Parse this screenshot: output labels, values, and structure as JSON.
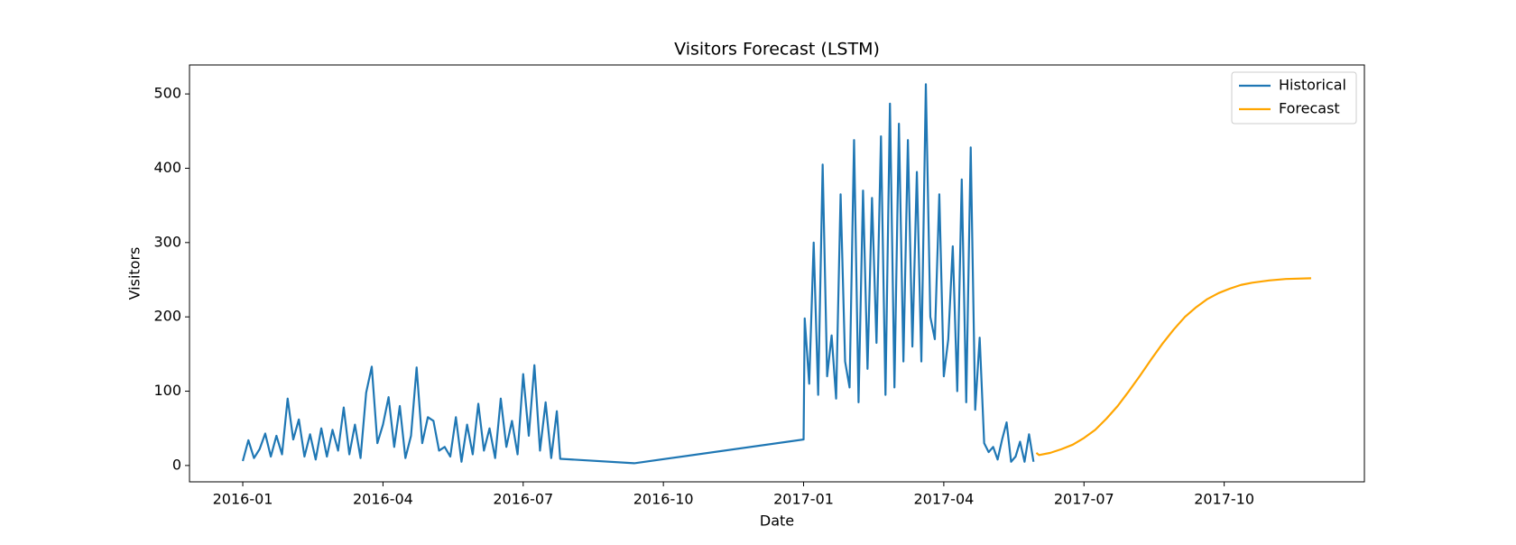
{
  "chart_data": {
    "type": "line",
    "title": "Visitors Forecast (LSTM)",
    "x_label": "Date",
    "y_label": "Visitors",
    "xlim": [
      2015.905,
      2018.0
    ],
    "ylim": [
      -22,
      539
    ],
    "xticks": [
      {
        "value": 2016.0,
        "label": "2016-01"
      },
      {
        "value": 2016.25,
        "label": "2016-04"
      },
      {
        "value": 2016.5,
        "label": "2016-07"
      },
      {
        "value": 2016.75,
        "label": "2016-10"
      },
      {
        "value": 2017.0,
        "label": "2017-01"
      },
      {
        "value": 2017.25,
        "label": "2017-04"
      },
      {
        "value": 2017.5,
        "label": "2017-07"
      },
      {
        "value": 2017.75,
        "label": "2017-10"
      }
    ],
    "yticks": [
      0,
      100,
      200,
      300,
      400,
      500
    ],
    "legend": "upper right",
    "grid": false,
    "series": [
      {
        "name": "Historical",
        "color": "#1f77b4",
        "x": [
          2016.0,
          2016.01,
          2016.02,
          2016.03,
          2016.04,
          2016.05,
          2016.06,
          2016.07,
          2016.08,
          2016.09,
          2016.1,
          2016.11,
          2016.12,
          2016.13,
          2016.14,
          2016.15,
          2016.16,
          2016.17,
          2016.18,
          2016.19,
          2016.2,
          2016.21,
          2016.22,
          2016.23,
          2016.24,
          2016.25,
          2016.26,
          2016.27,
          2016.28,
          2016.29,
          2016.3,
          2016.31,
          2016.32,
          2016.33,
          2016.34,
          2016.35,
          2016.36,
          2016.37,
          2016.38,
          2016.39,
          2016.4,
          2016.41,
          2016.42,
          2016.43,
          2016.44,
          2016.45,
          2016.46,
          2016.47,
          2016.48,
          2016.49,
          2016.5,
          2016.51,
          2016.52,
          2016.53,
          2016.54,
          2016.55,
          2016.56,
          2016.566,
          2016.698,
          2017.0,
          2017.002,
          2017.01,
          2017.018,
          2017.026,
          2017.034,
          2017.042,
          2017.05,
          2017.058,
          2017.066,
          2017.074,
          2017.082,
          2017.09,
          2017.098,
          2017.106,
          2017.114,
          2017.122,
          2017.13,
          2017.138,
          2017.146,
          2017.154,
          2017.162,
          2017.17,
          2017.178,
          2017.186,
          2017.194,
          2017.202,
          2017.21,
          2017.218,
          2017.226,
          2017.234,
          2017.242,
          2017.25,
          2017.258,
          2017.266,
          2017.274,
          2017.282,
          2017.29,
          2017.298,
          2017.306,
          2017.314,
          2017.322,
          2017.33,
          2017.338,
          2017.346,
          2017.354,
          2017.362,
          2017.37,
          2017.378,
          2017.386,
          2017.394,
          2017.402,
          2017.41
        ],
        "values": [
          6,
          34,
          10,
          22,
          43,
          12,
          40,
          15,
          90,
          35,
          62,
          12,
          42,
          8,
          50,
          12,
          48,
          20,
          78,
          15,
          55,
          10,
          98,
          133,
          30,
          55,
          92,
          25,
          80,
          10,
          40,
          132,
          30,
          65,
          60,
          20,
          25,
          12,
          65,
          5,
          55,
          15,
          83,
          20,
          50,
          10,
          90,
          25,
          60,
          15,
          123,
          40,
          135,
          20,
          85,
          10,
          73,
          9,
          3,
          35,
          198,
          110,
          300,
          95,
          405,
          120,
          175,
          90,
          365,
          140,
          105,
          438,
          85,
          370,
          130,
          360,
          165,
          443,
          95,
          487,
          105,
          460,
          140,
          438,
          160,
          395,
          140,
          513,
          200,
          170,
          365,
          120,
          170,
          295,
          100,
          385,
          85,
          428,
          75,
          172,
          30,
          18,
          25,
          8,
          35,
          58,
          5,
          12,
          32,
          5,
          42,
          5
        ]
      },
      {
        "name": "Forecast",
        "color": "#ffa500",
        "x": [
          2017.415,
          2017.42,
          2017.44,
          2017.46,
          2017.48,
          2017.5,
          2017.52,
          2017.54,
          2017.56,
          2017.58,
          2017.6,
          2017.62,
          2017.64,
          2017.66,
          2017.68,
          2017.7,
          2017.72,
          2017.74,
          2017.76,
          2017.78,
          2017.8,
          2017.83,
          2017.86,
          2017.905
        ],
        "values": [
          17,
          14,
          17,
          22,
          28,
          37,
          48,
          63,
          80,
          100,
          121,
          143,
          164,
          183,
          200,
          213,
          224,
          232,
          238,
          243,
          246,
          249,
          251,
          252
        ]
      }
    ]
  }
}
